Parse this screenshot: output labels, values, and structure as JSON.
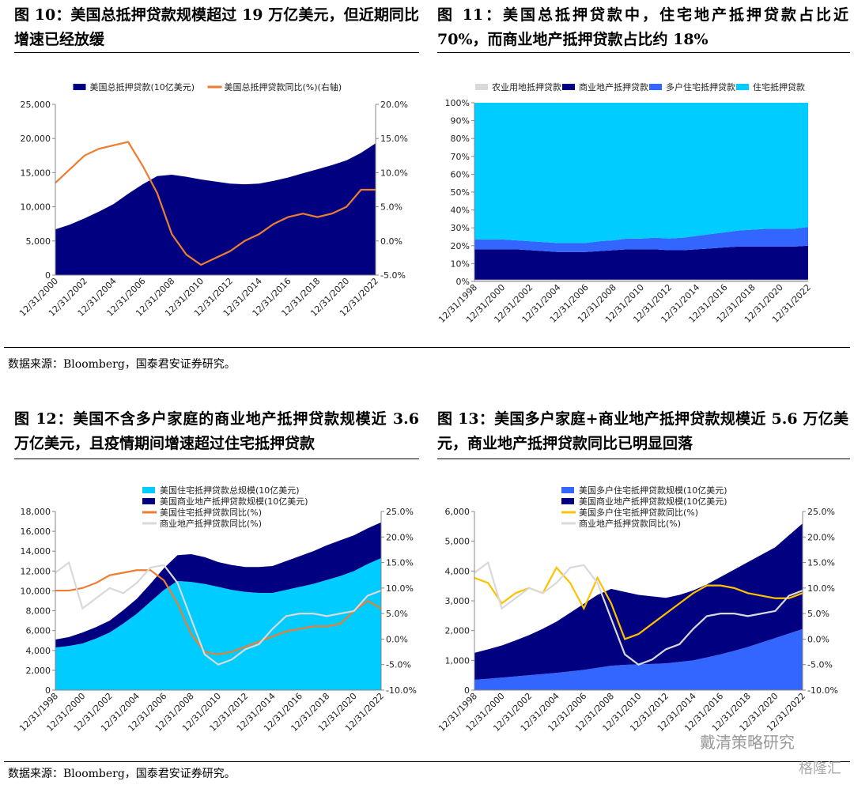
{
  "chart_data": [
    {
      "type": "area",
      "title": "图 10：美国总抵押贷款规模超过 19 万亿美元，但近期同比增速已经放缓",
      "legend": "top",
      "categories": [
        "12/31/2000",
        null,
        "12/31/2002",
        null,
        "12/31/2004",
        null,
        "12/31/2006",
        null,
        "12/31/2008",
        null,
        "12/31/2010",
        null,
        "12/31/2012",
        null,
        "12/31/2014",
        null,
        "12/31/2016",
        null,
        "12/31/2018",
        null,
        "12/31/2020",
        null,
        "12/31/2022"
      ],
      "series": [
        {
          "name": "美国总抵押贷款(10亿美元)",
          "mark": "area",
          "color": "#000080",
          "values": [
            6700,
            7400,
            8300,
            9300,
            10400,
            11900,
            13300,
            14500,
            14700,
            14400,
            14000,
            13700,
            13400,
            13300,
            13400,
            13800,
            14300,
            14900,
            15500,
            16100,
            16800,
            17900,
            19300
          ]
        },
        {
          "name": "美国总抵押贷款同比(%)(右轴)",
          "mark": "line",
          "axis": "y2",
          "color": "#ED7D31",
          "values": [
            8.5,
            10.5,
            12.5,
            13.5,
            14,
            14.5,
            11,
            7,
            1,
            -2,
            -3.5,
            -2.5,
            -1.5,
            0,
            1,
            2.5,
            3.5,
            4,
            3.5,
            4,
            5,
            7.5,
            7.5
          ]
        }
      ],
      "ylim": [
        0,
        25000
      ],
      "yticks": [
        0,
        {
          "value": 5000,
          "label": "5,000"
        },
        {
          "value": 10000,
          "label": "10,000"
        },
        {
          "value": 15000,
          "label": "15,000"
        },
        {
          "value": 20000,
          "label": "20,000"
        },
        {
          "value": 25000,
          "label": "25,000"
        }
      ],
      "y2lim": [
        -5,
        20
      ],
      "y2ticks": [
        {
          "value": -5,
          "label": "-5.0%"
        },
        {
          "value": 0,
          "label": "0.0%"
        },
        {
          "value": 5,
          "label": "5.0%"
        },
        {
          "value": 10,
          "label": "10.0%"
        },
        {
          "value": 15,
          "label": "15.0%"
        },
        {
          "value": 20,
          "label": "20.0%"
        }
      ]
    },
    {
      "type": "area",
      "title": "图 11：美国总抵押贷款中，住宅地产抵押贷款占比近 70%，而商业地产抵押贷款占比约 18%",
      "legend": "top",
      "categories": [
        "12/31/1998",
        null,
        "12/31/2000",
        null,
        "12/31/2002",
        null,
        "12/31/2004",
        null,
        "12/31/2006",
        null,
        "12/31/2008",
        null,
        "12/31/2010",
        null,
        "12/31/2012",
        null,
        "12/31/2014",
        null,
        "12/31/2016",
        null,
        "12/31/2018",
        null,
        "12/31/2020",
        null,
        "12/31/2022"
      ],
      "series": [
        {
          "name": "农业用地抵押贷款",
          "mark": "area",
          "color": "#D9D9D9",
          "values": [
            1,
            1,
            1,
            1,
            1,
            1,
            1,
            1,
            1,
            1,
            1,
            1,
            1,
            1,
            1,
            1,
            1,
            1,
            1,
            1,
            1,
            1,
            1,
            1,
            1
          ]
        },
        {
          "name": "商业地产抵押贷款",
          "mark": "area",
          "color": "#000080",
          "values": [
            17,
            17,
            17,
            17,
            16.5,
            16,
            15.5,
            15.5,
            15.5,
            16,
            16.5,
            17,
            17,
            17,
            16.5,
            16.5,
            17,
            17.5,
            18,
            18.5,
            18.5,
            18.5,
            18.5,
            18.5,
            19
          ]
        },
        {
          "name": "多户住宅抵押贷款",
          "mark": "area",
          "color": "#3366FF",
          "values": [
            5.5,
            5.5,
            5.5,
            5,
            5,
            5,
            5,
            5,
            5,
            5.5,
            5.5,
            6,
            6,
            6.5,
            6.5,
            7,
            7.5,
            8,
            8.5,
            9,
            9.5,
            10,
            10,
            10,
            10.5
          ]
        },
        {
          "name": "住宅抵押贷款",
          "mark": "area",
          "color": "#00CCFF",
          "values": [
            76.5,
            76.5,
            76.5,
            77,
            77.5,
            78,
            78.5,
            78.5,
            78.5,
            77.5,
            77,
            76,
            76,
            75.5,
            76,
            75.5,
            74.5,
            73.5,
            72.5,
            71.5,
            71,
            70.5,
            70.5,
            70.5,
            69.5
          ]
        }
      ],
      "ylim": [
        0,
        100
      ],
      "yticks": [
        {
          "value": 0,
          "label": "0%"
        },
        {
          "value": 10,
          "label": "10%"
        },
        {
          "value": 20,
          "label": "20%"
        },
        {
          "value": 30,
          "label": "30%"
        },
        {
          "value": 40,
          "label": "40%"
        },
        {
          "value": 50,
          "label": "50%"
        },
        {
          "value": 60,
          "label": "60%"
        },
        {
          "value": 70,
          "label": "70%"
        },
        {
          "value": 80,
          "label": "80%"
        },
        {
          "value": 90,
          "label": "90%"
        },
        {
          "value": 100,
          "label": "100%"
        }
      ]
    },
    {
      "type": "area",
      "title": "图 12：美国不含多户家庭的商业地产抵押贷款规模近 3.6 万亿美元，且疫情期间增速超过住宅抵押贷款",
      "legend": "top-left",
      "categories": [
        "12/31/1998",
        null,
        "12/31/2000",
        null,
        "12/31/2002",
        null,
        "12/31/2004",
        null,
        "12/31/2006",
        null,
        "12/31/2008",
        null,
        "12/31/2010",
        null,
        "12/31/2012",
        null,
        "12/31/2014",
        null,
        "12/31/2016",
        null,
        "12/31/2018",
        null,
        "12/31/2020",
        null,
        "12/31/2022"
      ],
      "series": [
        {
          "name": "美国住宅抵押贷款总规模(10亿美元)",
          "mark": "area",
          "color": "#00CCFF",
          "values": [
            4300,
            4450,
            4700,
            5200,
            5800,
            6700,
            7700,
            8900,
            10100,
            11000,
            10900,
            10700,
            10400,
            10100,
            9900,
            9800,
            9800,
            10100,
            10400,
            10700,
            11100,
            11500,
            12000,
            12700,
            13300
          ]
        },
        {
          "name": "美国商业地产抵押贷款规模(10亿美元)",
          "mark": "area",
          "color": "#000080",
          "values": [
            800,
            900,
            1100,
            1150,
            1200,
            1350,
            1500,
            1800,
            2200,
            2600,
            2800,
            2700,
            2500,
            2500,
            2500,
            2600,
            2700,
            2900,
            3100,
            3300,
            3500,
            3600,
            3600,
            3600,
            3600
          ]
        },
        {
          "name": "美国住宅抵押贷款同比(%)",
          "mark": "line",
          "axis": "y2",
          "color": "#ED7D31",
          "values": [
            9.5,
            9.5,
            10,
            11,
            12.5,
            13,
            13.5,
            13.5,
            11.5,
            7,
            1,
            -2.5,
            -3,
            -2.5,
            -1.5,
            -0.5,
            0.5,
            1.5,
            2,
            2.5,
            2.5,
            3,
            5.5,
            7.5,
            6
          ]
        },
        {
          "name": "商业地产抵押贷款同比(%)",
          "mark": "line",
          "axis": "y2",
          "color": "#D9D9D9",
          "values": [
            13,
            15,
            6,
            8,
            10,
            9,
            11,
            14,
            14.5,
            11,
            4,
            -3,
            -5,
            -4,
            -2,
            -1,
            2,
            4.5,
            5,
            5,
            4.5,
            5,
            5.5,
            8.5,
            9.5
          ]
        }
      ],
      "ylim": [
        0,
        18000
      ],
      "yticks": [
        0,
        {
          "value": 2000,
          "label": "2,000"
        },
        {
          "value": 4000,
          "label": "4,000"
        },
        {
          "value": 6000,
          "label": "6,000"
        },
        {
          "value": 8000,
          "label": "8,000"
        },
        {
          "value": 10000,
          "label": "10,000"
        },
        {
          "value": 12000,
          "label": "12,000"
        },
        {
          "value": 14000,
          "label": "14,000"
        },
        {
          "value": 16000,
          "label": "16,000"
        },
        {
          "value": 18000,
          "label": "18,000"
        }
      ],
      "y2lim": [
        -10,
        25
      ],
      "y2ticks": [
        {
          "value": -10,
          "label": "-10.0%"
        },
        {
          "value": -5,
          "label": "-5.0%"
        },
        {
          "value": 0,
          "label": "0.0%"
        },
        {
          "value": 5,
          "label": "5.0%"
        },
        {
          "value": 10,
          "label": "10.0%"
        },
        {
          "value": 15,
          "label": "15.0%"
        },
        {
          "value": 20,
          "label": "20.0%"
        },
        {
          "value": 25,
          "label": "25.0%"
        }
      ]
    },
    {
      "type": "area",
      "title": "图 13：美国多户家庭+商业地产抵押贷款规模近 5.6 万亿美元，商业地产抵押贷款同比已明显回落",
      "legend": "top-left",
      "categories": [
        "12/31/1998",
        null,
        "12/31/2000",
        null,
        "12/31/2002",
        null,
        "12/31/2004",
        null,
        "12/31/2006",
        null,
        "12/31/2008",
        null,
        "12/31/2010",
        null,
        "12/31/2012",
        null,
        "12/31/2014",
        null,
        "12/31/2016",
        null,
        "12/31/2018",
        null,
        "12/31/2020",
        null,
        "12/31/2022"
      ],
      "series": [
        {
          "name": "美国多户住宅抵押贷款规模(10亿美元)",
          "mark": "area",
          "color": "#3366FF",
          "values": [
            350,
            380,
            420,
            460,
            500,
            540,
            580,
            630,
            680,
            750,
            820,
            850,
            870,
            880,
            900,
            950,
            1000,
            1100,
            1200,
            1320,
            1450,
            1600,
            1750,
            1900,
            2050
          ]
        },
        {
          "name": "美国商业地产抵押贷款规模(10亿美元)",
          "mark": "area",
          "color": "#000080",
          "values": [
            900,
            990,
            1080,
            1210,
            1350,
            1520,
            1720,
            1970,
            2220,
            2450,
            2580,
            2450,
            2330,
            2270,
            2200,
            2250,
            2350,
            2450,
            2600,
            2730,
            2850,
            2950,
            3050,
            3300,
            3550
          ]
        },
        {
          "name": "美国多户住宅抵押贷款同比(%)",
          "mark": "line",
          "axis": "y2",
          "color": "#FFC000",
          "values": [
            12,
            11,
            7,
            9,
            10,
            9,
            14,
            11,
            6,
            12,
            7,
            0,
            1,
            3,
            5,
            7,
            9,
            10.5,
            10.5,
            10,
            9,
            8.5,
            8,
            8,
            9
          ]
        },
        {
          "name": "商业地产抵押贷款同比(%)",
          "mark": "line",
          "axis": "y2",
          "color": "#D9D9D9",
          "values": [
            13,
            15,
            6,
            8,
            10,
            9,
            11,
            14,
            14.5,
            11,
            4,
            -3,
            -5,
            -4,
            -2,
            -1,
            2,
            4.5,
            5,
            5,
            4.5,
            5,
            5.5,
            8.5,
            9.5
          ]
        }
      ],
      "ylim": [
        0,
        6000
      ],
      "yticks": [
        0,
        {
          "value": 1000,
          "label": "1,000"
        },
        {
          "value": 2000,
          "label": "2,000"
        },
        {
          "value": 3000,
          "label": "3,000"
        },
        {
          "value": 4000,
          "label": "4,000"
        },
        {
          "value": 5000,
          "label": "5,000"
        },
        {
          "value": 6000,
          "label": "6,000"
        }
      ],
      "y2lim": [
        -10,
        25
      ],
      "y2ticks": [
        {
          "value": -10,
          "label": "-10.0%"
        },
        {
          "value": -5,
          "label": "-5.0%"
        },
        {
          "value": 0,
          "label": "0.0%"
        },
        {
          "value": 5,
          "label": "5.0%"
        },
        {
          "value": 10,
          "label": "10.0%"
        },
        {
          "value": 15,
          "label": "15.0%"
        },
        {
          "value": 20,
          "label": "20.0%"
        },
        {
          "value": 25,
          "label": "25.0%"
        }
      ]
    }
  ],
  "sources": [
    "数据来源：Bloomberg，国泰君安证券研究。",
    "数据来源：Bloomberg，国泰君安证券研究。"
  ],
  "watermark": [
    "戴清策略研究",
    "格隆汇"
  ]
}
